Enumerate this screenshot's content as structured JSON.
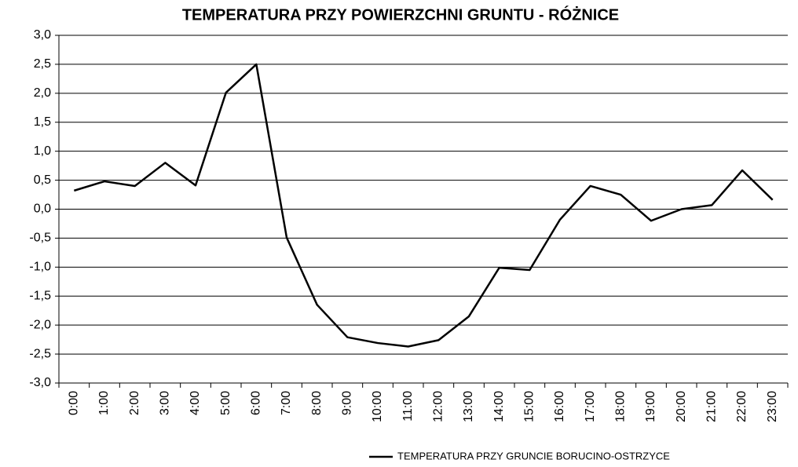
{
  "chart_data": {
    "type": "line",
    "title": "TEMPERATURA PRZY POWIERZCHNI GRUNTU - RÓŻNICE",
    "categories": [
      "0:00",
      "1:00",
      "2:00",
      "3:00",
      "4:00",
      "5:00",
      "6:00",
      "7:00",
      "8:00",
      "9:00",
      "10:00",
      "11:00",
      "12:00",
      "13:00",
      "14:00",
      "15:00",
      "16:00",
      "17:00",
      "18:00",
      "19:00",
      "20:00",
      "21:00",
      "22:00",
      "23:00"
    ],
    "series": [
      {
        "name": "TEMPERATURA PRZY GRUNCIE BORUCINO-OSTRZYCE",
        "color": "#000000",
        "values": [
          0.32,
          0.48,
          0.4,
          0.8,
          0.41,
          2.01,
          2.5,
          -0.49,
          -1.65,
          -2.21,
          -2.31,
          -2.37,
          -2.26,
          -1.85,
          -1.01,
          -1.05,
          -0.18,
          0.4,
          0.25,
          -0.2,
          0.0,
          0.07,
          0.67,
          0.16
        ]
      }
    ],
    "ylim": [
      -3,
      3
    ],
    "yticks": [
      {
        "value": -3,
        "label": "-3,0"
      },
      {
        "value": -2.5,
        "label": "-2,5"
      },
      {
        "value": -2,
        "label": "-2,0"
      },
      {
        "value": -1.5,
        "label": "-1,5"
      },
      {
        "value": -1,
        "label": "-1,0"
      },
      {
        "value": -0.5,
        "label": "-0,5"
      },
      {
        "value": 0,
        "label": "0,0"
      },
      {
        "value": 0.5,
        "label": "0,5"
      },
      {
        "value": 1,
        "label": "1,0"
      },
      {
        "value": 1.5,
        "label": "1,5"
      },
      {
        "value": 2,
        "label": "2,0"
      },
      {
        "value": 2.5,
        "label": "2,5"
      },
      {
        "value": 3,
        "label": "3,0"
      }
    ],
    "grid": true,
    "legend": "bottom-right"
  }
}
